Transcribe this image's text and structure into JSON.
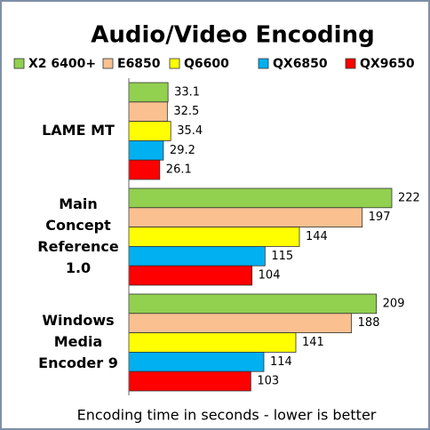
{
  "chart_data": {
    "type": "bar",
    "orientation": "horizontal",
    "title": "Audio/Video Encoding",
    "x_label": "Encoding time in seconds - lower is better",
    "categories": [
      [
        "LAME MT"
      ],
      [
        "Main",
        "Concept",
        "Reference",
        "1.0"
      ],
      [
        "Windows",
        "Media",
        "Encoder 9"
      ]
    ],
    "series": [
      {
        "name": "X2 6400+",
        "color": "#92d050",
        "values": [
          33.1,
          222,
          209
        ]
      },
      {
        "name": "E6850",
        "color": "#fac090",
        "values": [
          32.5,
          197,
          188
        ]
      },
      {
        "name": "Q6600",
        "color": "#ffff00",
        "values": [
          35.4,
          144,
          141
        ]
      },
      {
        "name": "QX6850",
        "color": "#00b0f0",
        "values": [
          29.2,
          115,
          114
        ]
      },
      {
        "name": "QX9650",
        "color": "#ff0000",
        "values": [
          26.1,
          104,
          103
        ]
      }
    ],
    "xlim": [
      0,
      240
    ],
    "legend": "top"
  }
}
